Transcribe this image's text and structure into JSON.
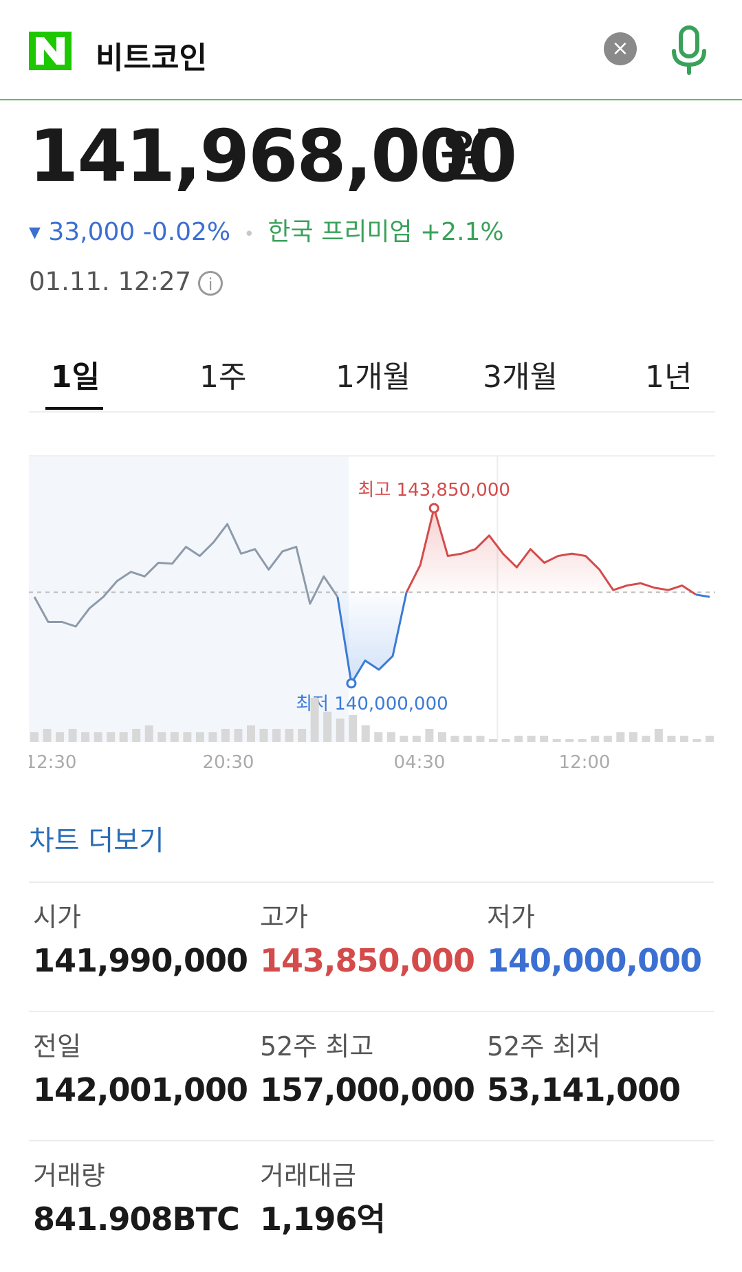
{
  "header": {
    "logo_letter": "N",
    "search_query": "비트코인",
    "clear_icon": "close-icon",
    "mic_icon": "mic-icon"
  },
  "quote": {
    "price": "141,968,000",
    "unit": "원",
    "change_arrow": "▼",
    "change": "33,000 -0.02%",
    "premium": "한국 프리미엄 +2.1%",
    "timestamp": "01.11. 12:27",
    "colors": {
      "down": "#3b6fd1",
      "up": "#d44b4b",
      "premium": "#3aa15a"
    }
  },
  "tabs": [
    {
      "label": "1일",
      "active": true
    },
    {
      "label": "1주"
    },
    {
      "label": "1개월"
    },
    {
      "label": "3개월"
    },
    {
      "label": "1년"
    }
  ],
  "chart_data": {
    "type": "line",
    "x_ticks": [
      "12:30",
      "20:30",
      "04:30",
      "12:00"
    ],
    "baseline": 142001000,
    "ylim": [
      139000000,
      145000000
    ],
    "high": {
      "label": "최고 143,850,000",
      "value": 143850000
    },
    "low": {
      "label": "최저 140,000,000",
      "value": 140000000
    },
    "series": [
      {
        "values": [
          141900000,
          141350000,
          141350000,
          141250000,
          141650000,
          141900000,
          142250000,
          142450000,
          142350000,
          142650000,
          142630000,
          143000000,
          142800000,
          143100000,
          143500000,
          142850000,
          142950000,
          142500000,
          142900000,
          143000000,
          141750000,
          142350000,
          141900000,
          140000000,
          140500000,
          140300000,
          140600000,
          142000000,
          142600000,
          143850000,
          142800000,
          142850000,
          142950000,
          143250000,
          142850000,
          142550000,
          142950000,
          142650000,
          142800000,
          142850000,
          142800000,
          142500000,
          142050000,
          142150000,
          142200000,
          142100000,
          142050000,
          142150000,
          141950000,
          141900000
        ]
      }
    ],
    "volume": [
      2,
      3,
      2,
      3,
      2,
      2,
      2,
      2,
      3,
      4,
      2,
      2,
      2,
      2,
      2,
      3,
      3,
      4,
      3,
      3,
      3,
      3,
      12,
      8,
      6,
      7,
      4,
      2,
      2,
      1,
      1,
      3,
      2,
      1,
      1,
      1,
      0,
      0,
      1,
      1,
      1,
      0,
      0,
      0,
      1,
      1,
      2,
      2,
      1,
      3,
      1,
      1,
      0,
      1
    ],
    "grid": false
  },
  "more_link": "차트 더보기",
  "stats": [
    {
      "label": "시가",
      "value": "141,990,000",
      "tone": ""
    },
    {
      "label": "고가",
      "value": "143,850,000",
      "tone": "red"
    },
    {
      "label": "저가",
      "value": "140,000,000",
      "tone": "blue"
    },
    {
      "label": "전일",
      "value": "142,001,000",
      "tone": ""
    },
    {
      "label": "52주 최고",
      "value": "157,000,000",
      "tone": ""
    },
    {
      "label": "52주 최저",
      "value": "53,141,000",
      "tone": ""
    },
    {
      "label": "거래량",
      "value": "841.908BTC",
      "tone": ""
    },
    {
      "label": "거래대금",
      "value": "1,196억",
      "tone": ""
    }
  ]
}
